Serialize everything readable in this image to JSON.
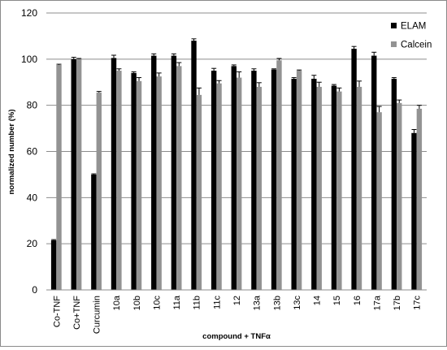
{
  "chart_data": {
    "type": "bar",
    "categories": [
      "Co-TNF",
      "Co+TNF",
      "Curcumin",
      "10a",
      "10b",
      "10c",
      "11a",
      "11b",
      "11c",
      "12",
      "13a",
      "13b",
      "13c",
      "14",
      "15",
      "16",
      "17a",
      "17b",
      "17c"
    ],
    "series": [
      {
        "name": "ELAM",
        "color": "#000000",
        "values": [
          21.5,
          100,
          50,
          100.5,
          94,
          101.5,
          101.5,
          108,
          95,
          97,
          95,
          95.5,
          91.5,
          91.5,
          88.5,
          104.5,
          101.5,
          91.5,
          68
        ],
        "errors": [
          0.3,
          0.8,
          0.3,
          1.2,
          0.5,
          0.8,
          0.8,
          0.8,
          1.0,
          0.5,
          0.8,
          0.3,
          0.5,
          1.5,
          0.5,
          1.0,
          1.5,
          0.5,
          1.5
        ]
      },
      {
        "name": "Calcein",
        "color": "#939393",
        "values": [
          97.5,
          100,
          85.5,
          95,
          90.5,
          92.5,
          97,
          84.5,
          89.5,
          92,
          88,
          99.5,
          95,
          88,
          86,
          88,
          77,
          81,
          78.5
        ],
        "errors": [
          0.3,
          0.3,
          0.5,
          0.8,
          1.5,
          1.5,
          1.5,
          3.0,
          1.2,
          2.5,
          1.8,
          0.8,
          0.3,
          2.0,
          1.5,
          2.5,
          2.5,
          1.3,
          1.5
        ]
      }
    ],
    "title": "",
    "xlabel": "compound + TNFα",
    "ylabel": "normalized number (%)",
    "ylim": [
      0,
      120
    ],
    "yticks": [
      0,
      20,
      40,
      60,
      80,
      100,
      120
    ],
    "grid": true,
    "legend_position": "top-right"
  }
}
